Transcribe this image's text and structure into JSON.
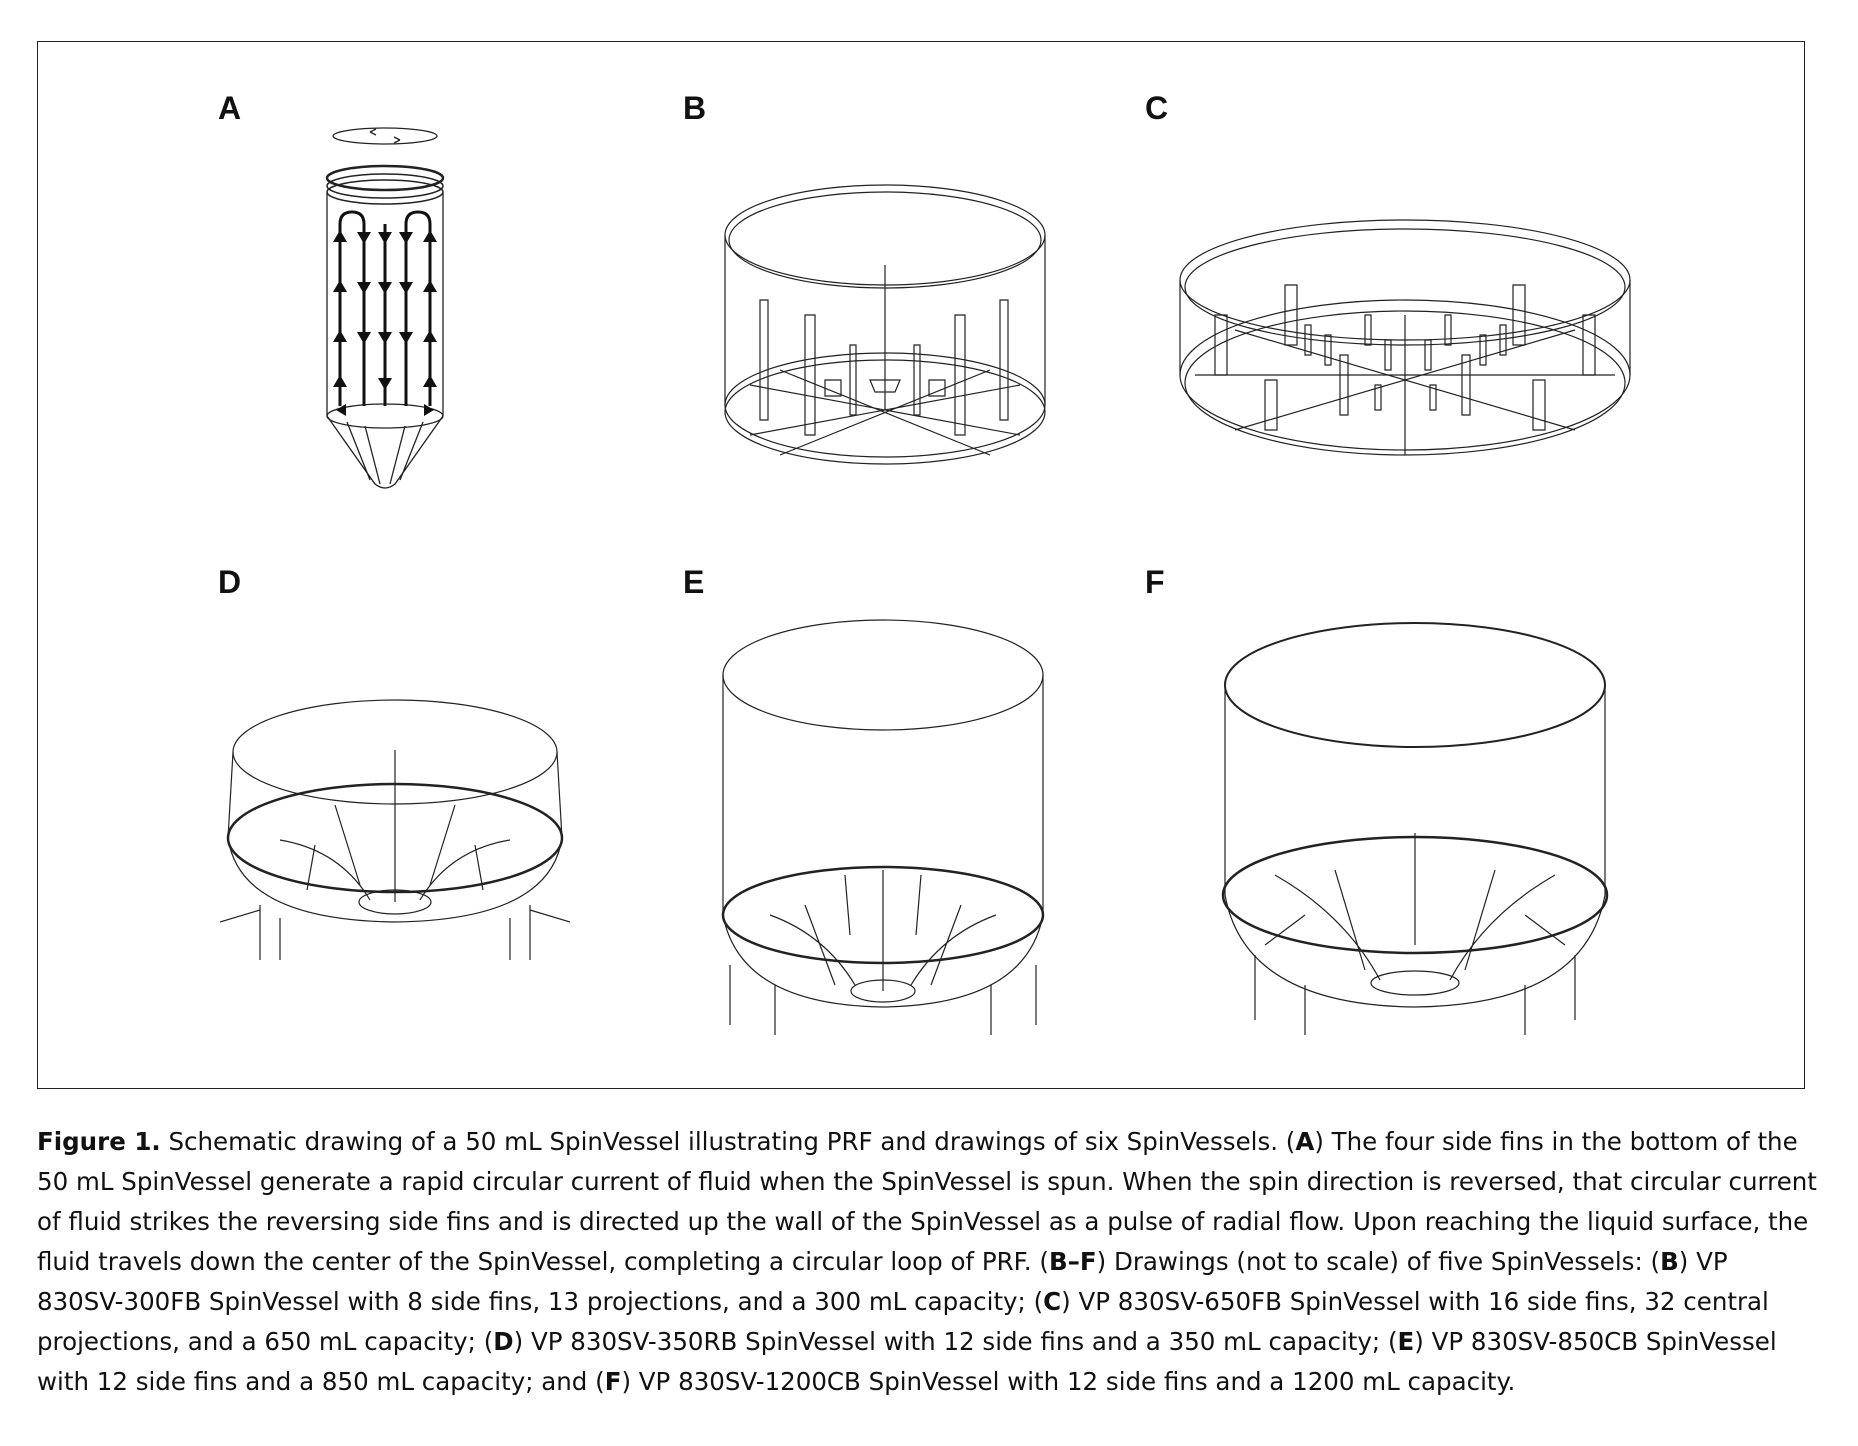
{
  "figure": {
    "panels": [
      {
        "id": "A",
        "label": "A"
      },
      {
        "id": "B",
        "label": "B"
      },
      {
        "id": "C",
        "label": "C"
      },
      {
        "id": "D",
        "label": "D"
      },
      {
        "id": "E",
        "label": "E"
      },
      {
        "id": "F",
        "label": "F"
      }
    ]
  },
  "caption": {
    "figure_label": "Figure 1.",
    "intro": " Schematic drawing of a 50 mL SpinVessel illustrating PRF and drawings of six SpinVessels. (",
    "ref_a": "A",
    "text_a": ") The four side fins in the bottom of the 50 mL SpinVessel generate a rapid circular current of fluid when the SpinVessel is spun. When the spin direction is reversed, that circular current of fluid strikes the reversing side fins and is directed up the wall of the SpinVessel as a pulse of radial flow. Upon reaching the liquid surface, the fluid travels down the center of the SpinVessel, completing a circular loop of PRF. (",
    "ref_bf": "B–F",
    "text_bf": ") Drawings (not to scale) of five SpinVessels: (",
    "ref_b": "B",
    "text_b": ") VP 830SV-300FB SpinVessel with 8 side fins, 13 projections, and a 300 mL capacity; (",
    "ref_c": "C",
    "text_c": ") VP 830SV-650FB SpinVessel with 16 side fins, 32 central projections, and a 650 mL capacity; (",
    "ref_d": "D",
    "text_d": ") VP 830SV-350RB SpinVessel with 12 side fins and a 350 mL capacity; (",
    "ref_e": "E",
    "text_e": ") VP 830SV-850CB SpinVessel with 12 side fins and a 850 mL capacity; and (",
    "ref_f": "F",
    "text_f": ") VP 830SV-1200CB SpinVessel with 12 side fins and a 1200 mL capacity."
  }
}
